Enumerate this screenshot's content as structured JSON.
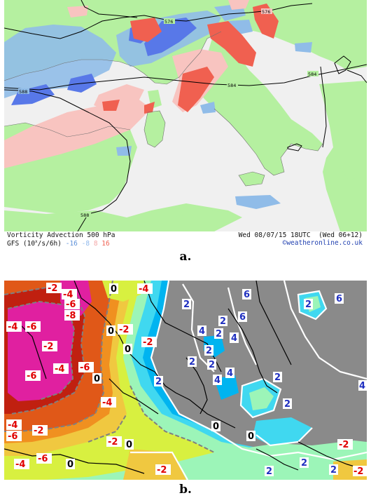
{
  "panel_a": {
    "footer": {
      "title": "Vorticity Advection 500 hPa",
      "model": "GFS (10",
      "model_units_tail": "/s/6h)",
      "legend": [
        "-16",
        "-8",
        "8",
        "16"
      ],
      "datetime": "Wed 08/07/15 18UTC",
      "run": "(Wed 06+12)",
      "source": "©weatheronline.co.uk"
    },
    "contour_labels": [
      "576",
      "576",
      "584",
      "584",
      "588",
      "588"
    ],
    "colors": {
      "land": "#b5f0a0",
      "sea": "#f0f0f0",
      "pos_strong": "#f06050",
      "pos_weak": "#f8c4c0",
      "neg_strong": "#5878e8",
      "neg_weak": "#90bce8"
    }
  },
  "panel_b": {
    "labels_red": [
      "-2",
      "-4",
      "-4",
      "-6",
      "-8",
      "-4",
      "-6",
      "-2",
      "-6",
      "-4",
      "-6",
      "-2",
      "-4",
      "-2",
      "-4",
      "-6",
      "-2",
      "-2",
      "-4",
      "-6",
      "-2",
      "-2",
      "-2"
    ],
    "labels_zero": [
      "0",
      "0",
      "0",
      "0",
      "0",
      "0",
      "0",
      "0"
    ],
    "labels_blue": [
      "6",
      "2",
      "6",
      "4",
      "6",
      "2",
      "4",
      "2",
      "2",
      "4",
      "2",
      "4",
      "2",
      "2",
      "2",
      "2",
      "2",
      "4",
      "2",
      "2",
      "2"
    ]
  },
  "captions": {
    "a": "a.",
    "b": "b."
  }
}
